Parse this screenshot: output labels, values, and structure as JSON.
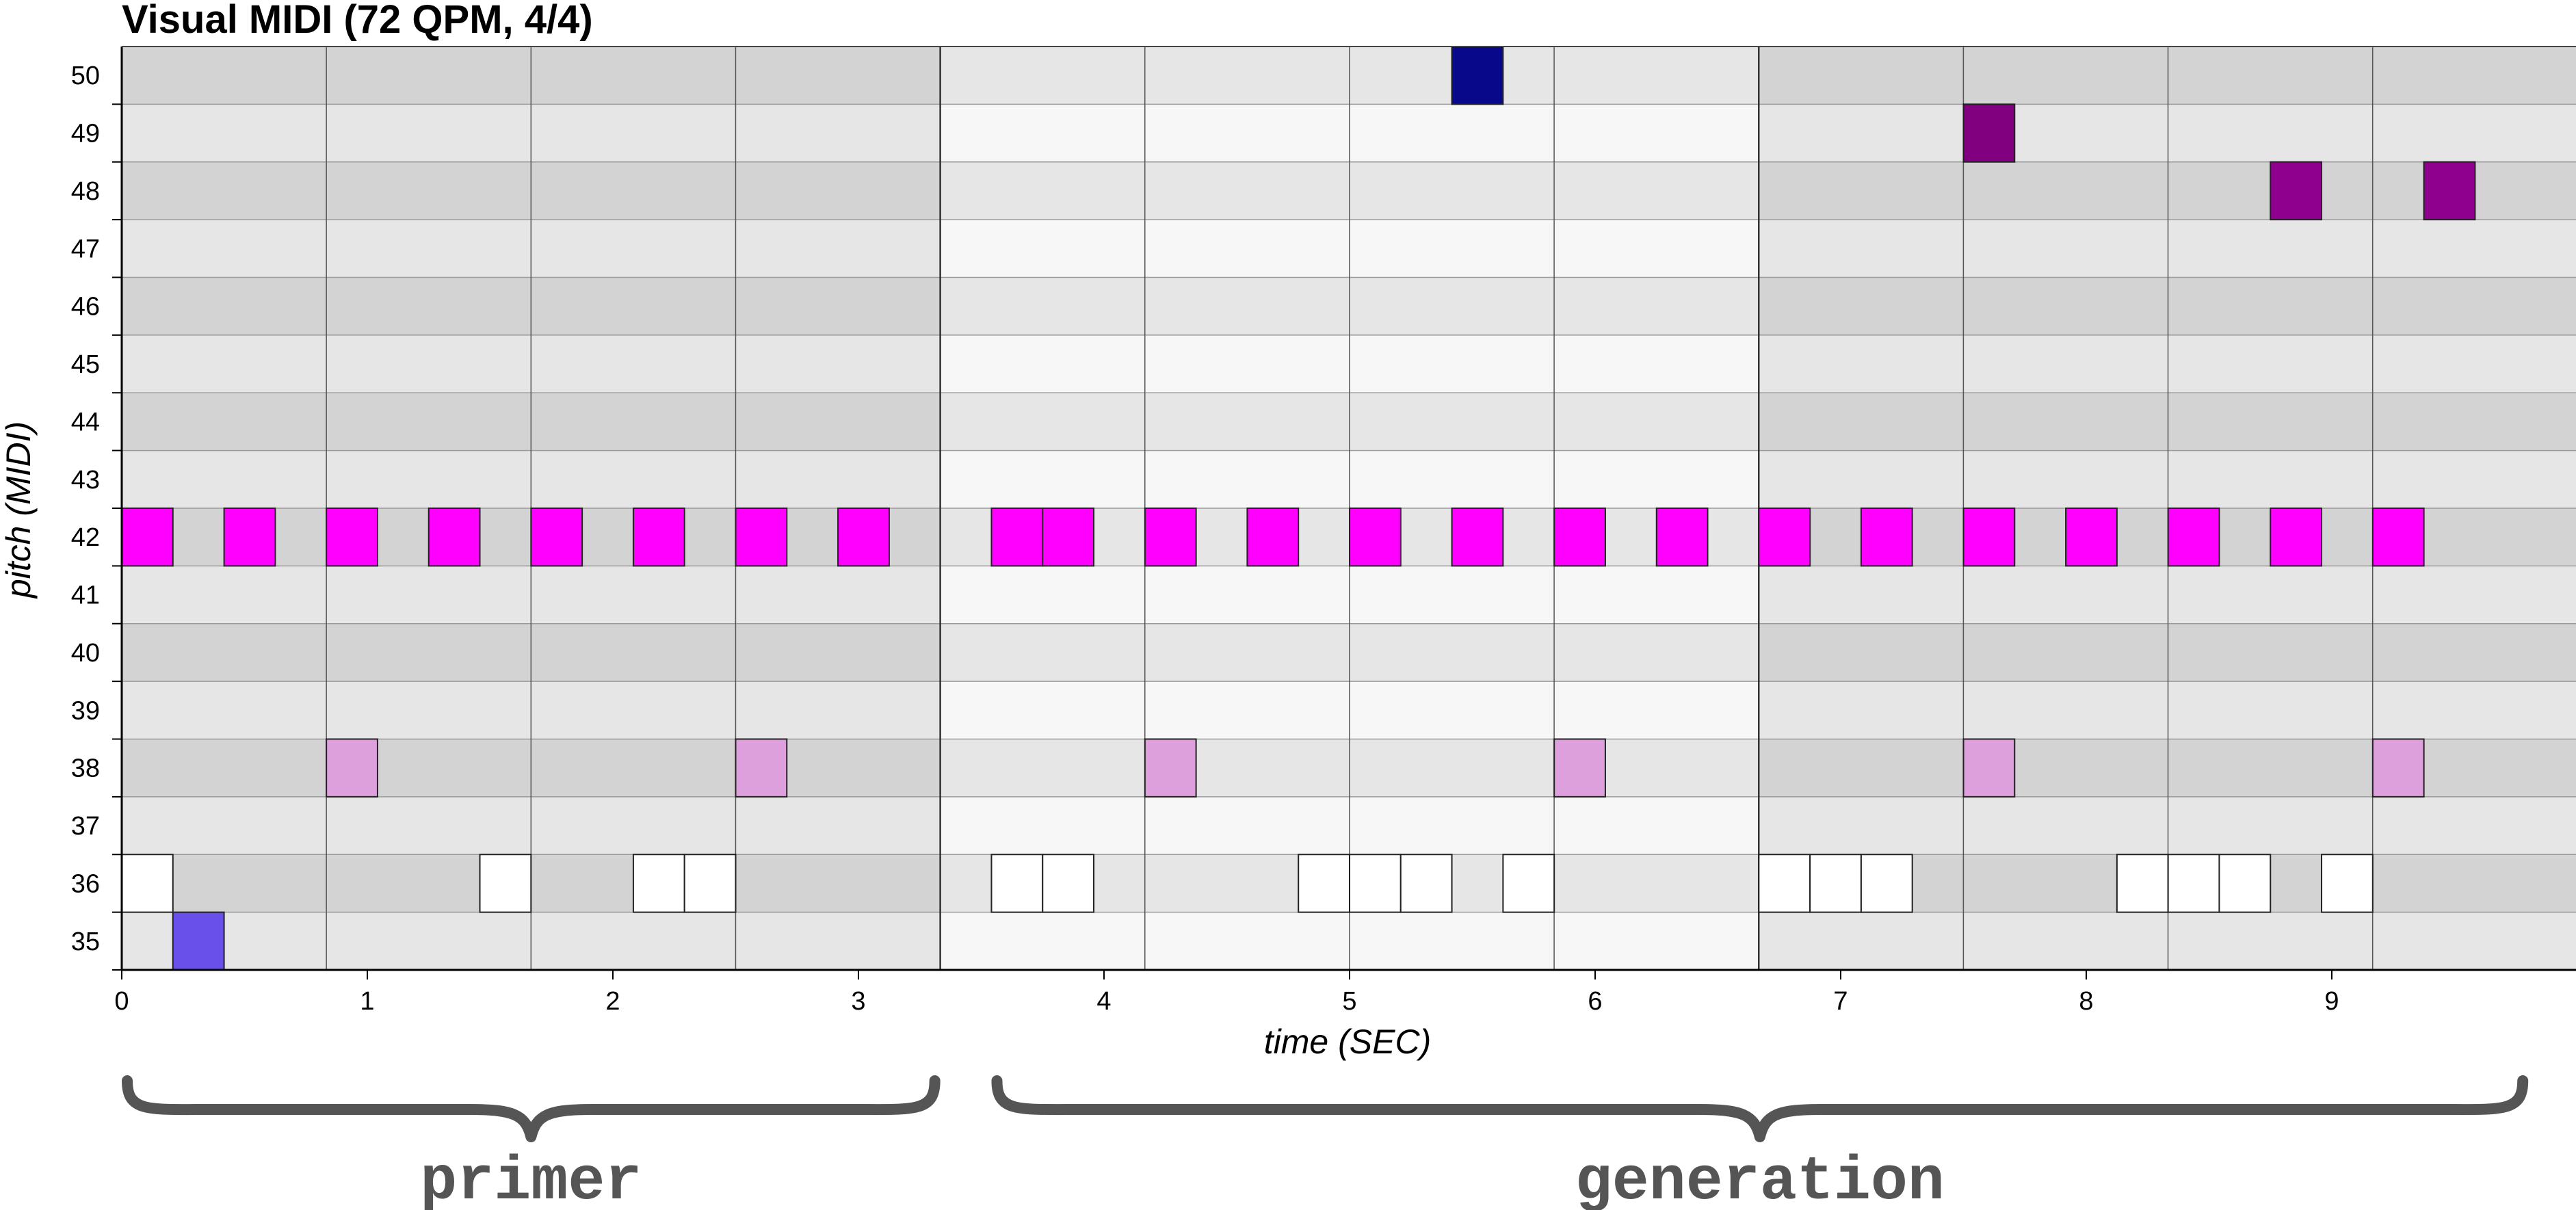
{
  "chart_data": {
    "type": "piano-roll",
    "title": "Visual MIDI (72 QPM, 4/4)",
    "xlabel": "time (SEC)",
    "ylabel": "pitch (MIDI)",
    "xlim": [
      0,
      10
    ],
    "ylim": [
      35,
      50
    ],
    "x_ticks": [
      "0",
      "1",
      "2",
      "3",
      "4",
      "5",
      "6",
      "7",
      "8",
      "9"
    ],
    "y_ticks": [
      "35",
      "36",
      "37",
      "38",
      "39",
      "40",
      "41",
      "42",
      "43",
      "44",
      "45",
      "46",
      "47",
      "48",
      "49",
      "50"
    ],
    "beat_seconds": 0.8333,
    "bars": [
      {
        "start": 0,
        "end": 3.3333,
        "shade": "dark"
      },
      {
        "start": 3.3333,
        "end": 6.6667,
        "shade": "light"
      },
      {
        "start": 6.6667,
        "end": 10,
        "shade": "dark"
      }
    ],
    "row_colors": {
      "dark": {
        "even": "#d3d3d3",
        "odd": "#e6e6e6"
      },
      "light": {
        "even": "#e6e6e6",
        "odd": "#f7f7f7"
      }
    },
    "note_duration": 0.2083,
    "notes": [
      {
        "pitch": 42,
        "starts": [
          0,
          0.4167,
          0.8333,
          1.25,
          1.6667,
          2.0833,
          2.5,
          2.9167,
          3.5417,
          3.75,
          4.1667,
          4.5833,
          5,
          5.4167,
          5.8333,
          6.25,
          6.6667,
          7.0833,
          7.5,
          7.9167,
          8.3333,
          8.75,
          9.1667
        ],
        "color": "#ff00ff"
      },
      {
        "pitch": 38,
        "starts": [
          0.8333,
          2.5,
          4.1667,
          5.8333,
          7.5,
          9.1667
        ],
        "color": "#dda0dd"
      },
      {
        "pitch": 36,
        "starts": [
          0,
          1.4583,
          2.0833,
          2.2917,
          3.5417,
          3.75,
          4.7917,
          5,
          5.2083,
          5.625,
          6.6667,
          6.875,
          7.0833,
          8.125,
          8.3333,
          8.5417,
          8.9583
        ],
        "color": "#ffffff"
      },
      {
        "pitch": 35,
        "starts": [
          0.2083
        ],
        "color": "#6a50ea"
      },
      {
        "pitch": 50,
        "starts": [
          5.4167
        ],
        "color": "#08088a"
      },
      {
        "pitch": 49,
        "starts": [
          7.5
        ],
        "color": "#800080"
      },
      {
        "pitch": 48,
        "starts": [
          8.75,
          9.375
        ],
        "color": "#8f008f"
      }
    ],
    "sections": [
      {
        "label": "primer",
        "start": 0,
        "end": 3.3333
      },
      {
        "label": "generation",
        "start": 3.5417,
        "end": 9.8
      }
    ],
    "grid": true
  }
}
